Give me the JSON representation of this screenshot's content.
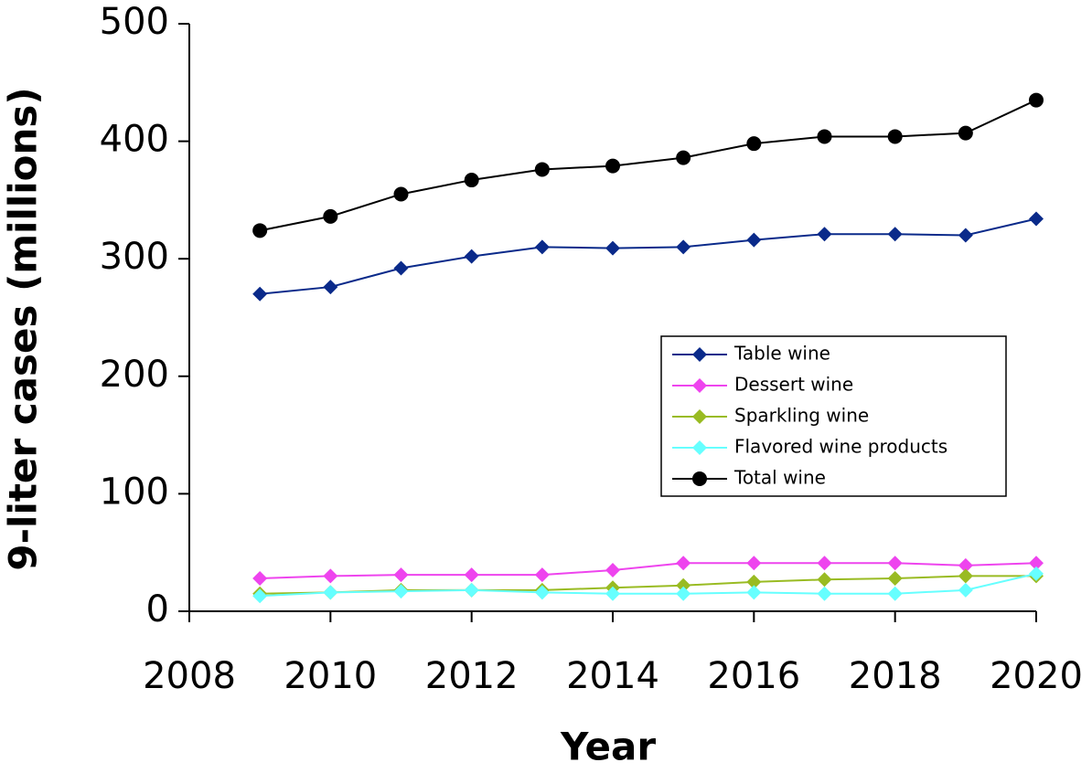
{
  "chart_data": {
    "type": "line",
    "x_label": "Year",
    "y_label": "9-liter cases (millions)",
    "x": [
      2009,
      2010,
      2011,
      2012,
      2013,
      2014,
      2015,
      2016,
      2017,
      2018,
      2019,
      2020
    ],
    "xlim": [
      2008,
      2020
    ],
    "xticks": [
      2008,
      2010,
      2012,
      2014,
      2016,
      2018,
      2020
    ],
    "ylim": [
      0,
      500
    ],
    "yticks": [
      0,
      100,
      200,
      300,
      400,
      500
    ],
    "grid": false,
    "legend": "right",
    "series": [
      {
        "name": "Table wine",
        "color": "#0a2a8a",
        "marker": "diamond",
        "values": [
          270,
          276,
          292,
          302,
          310,
          309,
          310,
          316,
          321,
          321,
          320,
          334
        ]
      },
      {
        "name": "Dessert wine",
        "color": "#ee44ee",
        "marker": "diamond",
        "values": [
          28,
          30,
          31,
          31,
          31,
          35,
          41,
          41,
          41,
          41,
          39,
          41
        ]
      },
      {
        "name": "Sparkling wine",
        "color": "#99bb22",
        "marker": "diamond",
        "values": [
          15,
          16,
          18,
          18,
          18,
          20,
          22,
          25,
          27,
          28,
          30,
          30
        ]
      },
      {
        "name": "Flavored wine products",
        "color": "#66ffff",
        "marker": "diamond",
        "values": [
          13,
          16,
          17,
          18,
          16,
          15,
          15,
          16,
          15,
          15,
          18,
          32
        ]
      },
      {
        "name": "Total wine",
        "color": "#000000",
        "marker": "circle",
        "values": [
          324,
          336,
          355,
          367,
          376,
          379,
          386,
          398,
          404,
          404,
          407,
          435
        ]
      }
    ]
  }
}
